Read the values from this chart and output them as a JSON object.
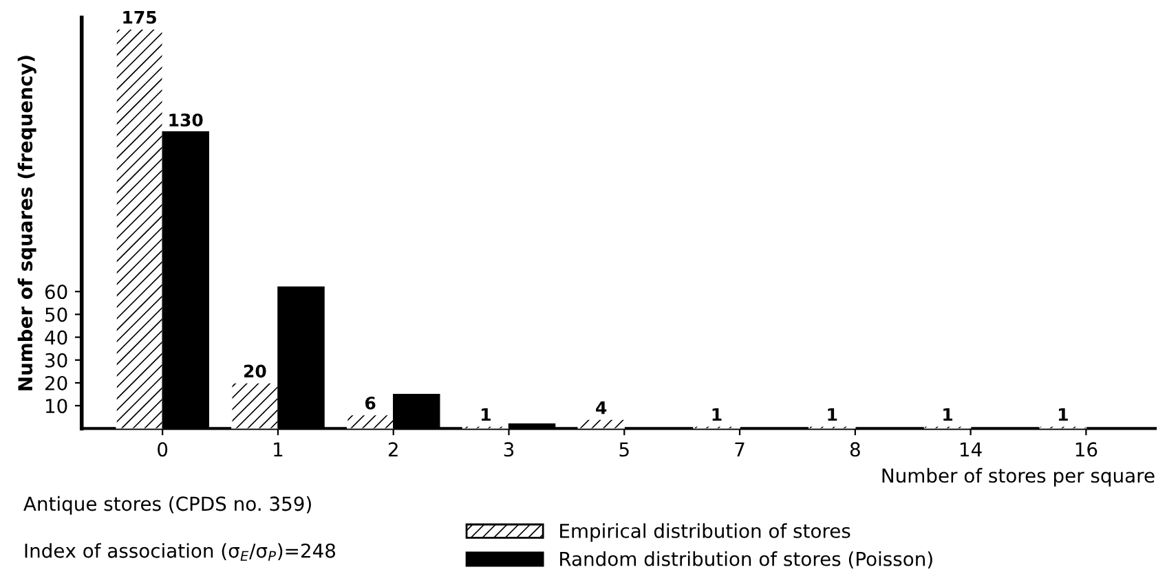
{
  "chart_data": {
    "type": "bar",
    "xlabel": "Number of stores per square",
    "ylabel": "Number of squares (frequency)",
    "categories": [
      "0",
      "1",
      "2",
      "3",
      "5",
      "7",
      "8",
      "14",
      "16"
    ],
    "series": [
      {
        "name": "Empirical distribution of stores",
        "color": "#ffffff",
        "values": [
          175,
          20,
          6,
          1,
          4,
          1,
          1,
          1,
          1
        ],
        "value_labels": [
          "175",
          "20",
          "6",
          "1",
          "4",
          "1",
          "1",
          "1",
          "1"
        ]
      },
      {
        "name": "Random distribution of stores (Poisson)",
        "color": "#000000",
        "values": [
          130,
          62,
          15,
          2,
          null,
          null,
          null,
          null,
          null
        ],
        "value_labels": [
          "130",
          null,
          null,
          null,
          null,
          null,
          null,
          null,
          null
        ]
      }
    ],
    "ylim": [
      0,
      180
    ],
    "yticks": [
      10,
      20,
      30,
      40,
      50,
      60
    ],
    "grid": false,
    "legend": "bottom",
    "annotations": [
      "Antique stores (CPDS no. 359)",
      "Index of association (σ$_{E}$/σ$_{P}$)=248"
    ]
  }
}
